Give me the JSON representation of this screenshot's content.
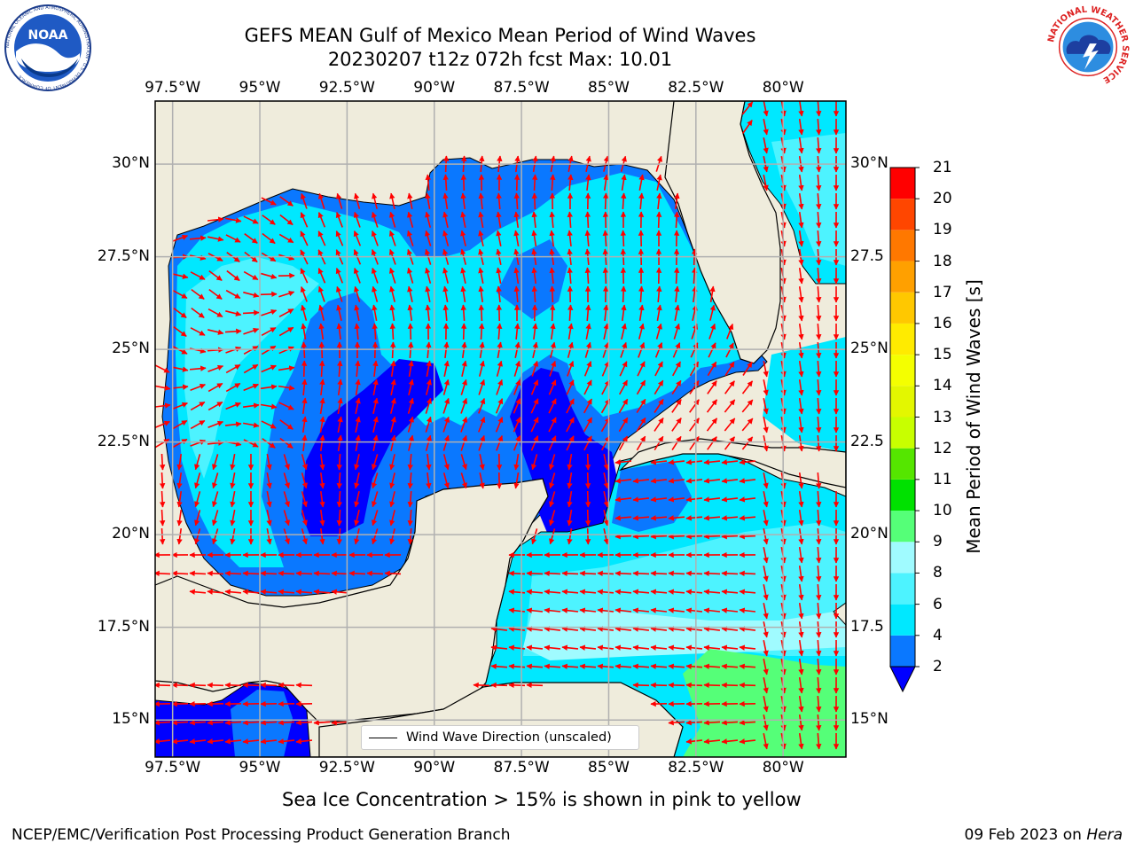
{
  "header": {
    "title_line1": "GEFS MEAN Gulf of Mexico Mean Period of Wind Waves",
    "title_line2": "20230207 t12z 072h fcst   Max: 10.01"
  },
  "map": {
    "lon_labels": [
      "97.5°W",
      "95°W",
      "92.5°W",
      "90°W",
      "87.5°W",
      "85°W",
      "82.5°W",
      "80°W"
    ],
    "lat_labels_left": [
      "30°N",
      "27.5°N",
      "25°N",
      "22.5°N",
      "20°N",
      "17.5°N",
      "15°N"
    ],
    "lat_labels_right": [
      "30°N",
      "27.5",
      "25°N",
      "22.5",
      "20°N",
      "17.5",
      "15°N"
    ],
    "extent": {
      "lon": [
        -98,
        -78.2
      ],
      "lat": [
        14,
        31.7
      ]
    },
    "land_color": "#efecdc",
    "arrow_color": "#ff0000"
  },
  "legend": {
    "label": "Wind Wave Direction (unscaled)"
  },
  "colorbar": {
    "label": "Mean Period of Wind Waves [s]",
    "ticks": [
      "2",
      "4",
      "6",
      "8",
      "9",
      "10",
      "11",
      "12",
      "13",
      "14",
      "15",
      "16",
      "17",
      "18",
      "19",
      "20",
      "21"
    ],
    "bands": [
      {
        "from": 2,
        "to": 4,
        "color": "#0a78ff"
      },
      {
        "from": 4,
        "to": 6,
        "color": "#00e8ff"
      },
      {
        "from": 6,
        "to": 8,
        "color": "#4df3ff"
      },
      {
        "from": 8,
        "to": 9,
        "color": "#a0fbff"
      },
      {
        "from": 9,
        "to": 10,
        "color": "#55ff78"
      },
      {
        "from": 10,
        "to": 11,
        "color": "#00e100"
      },
      {
        "from": 11,
        "to": 12,
        "color": "#55e600"
      },
      {
        "from": 12,
        "to": 13,
        "color": "#c8ff00"
      },
      {
        "from": 13,
        "to": 14,
        "color": "#e3f700"
      },
      {
        "from": 14,
        "to": 15,
        "color": "#f4ff00"
      },
      {
        "from": 15,
        "to": 16,
        "color": "#ffeb00"
      },
      {
        "from": 16,
        "to": 17,
        "color": "#ffc800"
      },
      {
        "from": 17,
        "to": 18,
        "color": "#ffa000"
      },
      {
        "from": 18,
        "to": 19,
        "color": "#ff7800"
      },
      {
        "from": 19,
        "to": 20,
        "color": "#ff4600"
      },
      {
        "from": 20,
        "to": 21,
        "color": "#ff0000"
      }
    ],
    "under_color": "#0000ff"
  },
  "note": "Sea Ice Concentration > 15% is shown in pink to yellow",
  "footer": {
    "left": "NCEP/EMC/Verification Post Processing Product Generation Branch",
    "date": "09 Feb 2023 on ",
    "machine": "Hera"
  },
  "logos": {
    "noaa_text": "NOAA",
    "noaa_ring": "NATIONAL OCEANIC AND ATMOSPHERIC ADMINISTRATION · U.S. DEPARTMENT OF COMMERCE",
    "nws_ring": "NATIONAL WEATHER SERVICE"
  }
}
